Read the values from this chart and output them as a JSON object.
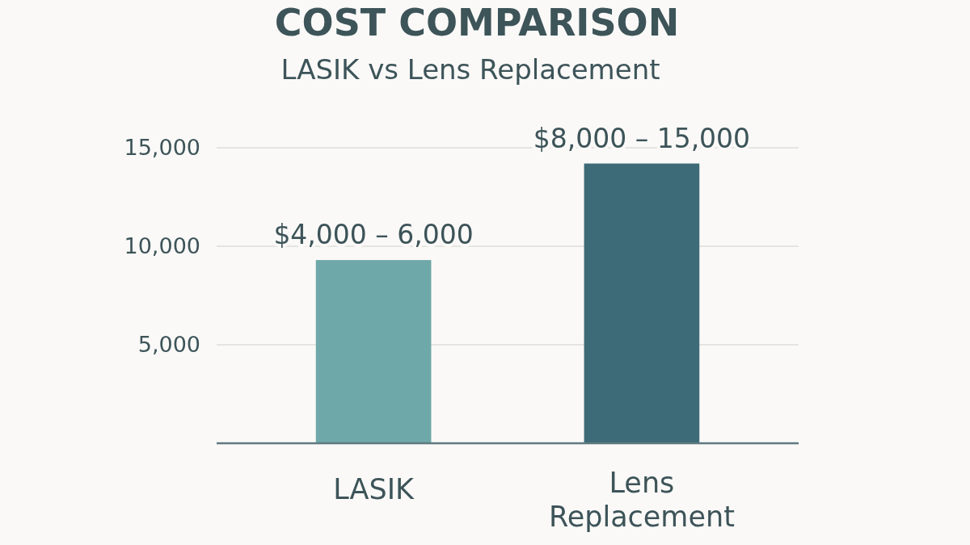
{
  "chart_data": {
    "type": "bar",
    "title": "COST COMPARISON",
    "subtitle": "LASIK vs Lens Replacement",
    "categories": [
      "LASIK",
      "Lens Replacement"
    ],
    "values": [
      9300,
      14200
    ],
    "colors": [
      "#6fa8a9",
      "#3e6b78"
    ],
    "annotations": [
      "$4,000 – 6,000",
      "$8,000 – 15,000"
    ],
    "ylim": [
      0,
      15000
    ],
    "yticks": [
      {
        "value": 5000,
        "label": "5,000"
      },
      {
        "value": 10000,
        "label": "10,000"
      },
      {
        "value": 15000,
        "label": "15,000"
      }
    ],
    "grid": "y"
  }
}
